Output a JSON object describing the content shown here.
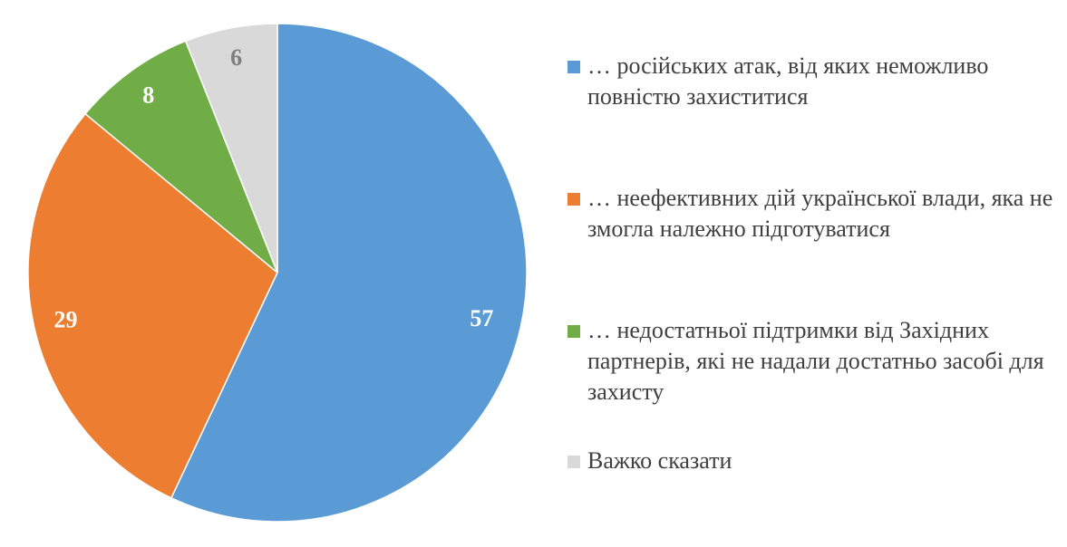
{
  "chart_data": {
    "type": "pie",
    "title": "",
    "categories": [
      "… російських атак, від яких неможливо повністю захиститися",
      "… неефективних дій української влади, яка не змогла належно підготуватися",
      "… недостатньої підтримки від Західних партнерів, які не надали достатньо засобі для захисту",
      "Важко сказати"
    ],
    "values": [
      57,
      29,
      8,
      6
    ],
    "data_labels": [
      "57",
      "29",
      "8",
      "6"
    ],
    "colors": [
      "#5B9BD5",
      "#ED7D31",
      "#70AD47",
      "#D9D9D9"
    ],
    "label_colors": [
      "#ffffff",
      "#ffffff",
      "#ffffff",
      "#7f7f7f"
    ],
    "legend_position": "right",
    "start_angle": "top",
    "direction": "clockwise"
  }
}
